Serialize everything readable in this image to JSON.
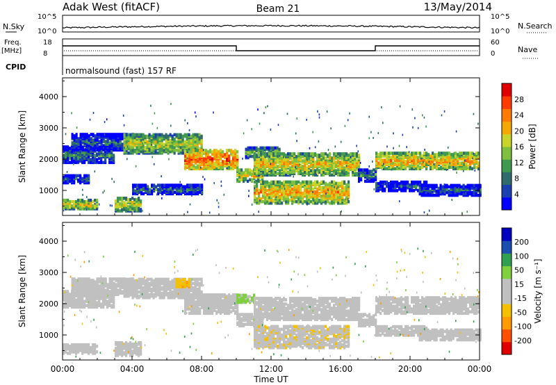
{
  "header": {
    "station": "Adak West (fitACF)",
    "beam": "Beam 21",
    "date": "13/May/2014"
  },
  "nsky_panel": {
    "left_label": "N.Sky",
    "right_label": "N.Search",
    "left_ticks": [
      "10^5",
      "10^0"
    ],
    "right_ticks": [
      "10^5",
      "10^0"
    ]
  },
  "freq_panel": {
    "left_label_1": "Freq.",
    "left_label_2": "[MHz]",
    "right_label": "Nave",
    "left_ticks": [
      "18",
      "8"
    ],
    "right_ticks": [
      "60",
      "0"
    ],
    "cpid_label": "CPID",
    "cpid_text": "normalsound (fast) 157 RF"
  },
  "chart_data": [
    {
      "type": "heatmap",
      "ylabel": "Slant Range [km]",
      "ylim": [
        200,
        4600
      ],
      "yticks": [
        "1000",
        "2000",
        "3000",
        "4000"
      ],
      "colorbar": {
        "label": "Power [dB]",
        "ticks": [
          "28",
          "24",
          "20",
          "16",
          "12",
          "8",
          "4"
        ],
        "range": [
          0,
          32
        ],
        "colors": [
          "#0000ff",
          "#1a3fb0",
          "#2f6b6b",
          "#3f9a4f",
          "#7fbf3f",
          "#c8d42a",
          "#f5a800",
          "#ff7a00",
          "#ff3c00",
          "#e00000"
        ]
      },
      "echo_bands": [
        {
          "t": [
            0,
            1.5
          ],
          "r": [
            1250,
            1500
          ],
          "power": 8
        },
        {
          "t": [
            0,
            3
          ],
          "r": [
            1900,
            2400
          ],
          "power": 10
        },
        {
          "t": [
            0.5,
            4
          ],
          "r": [
            2300,
            2800
          ],
          "power": 8
        },
        {
          "t": [
            0,
            2
          ],
          "r": [
            420,
            700
          ],
          "power": 20
        },
        {
          "t": [
            3,
            4.5
          ],
          "r": [
            350,
            800
          ],
          "power": 18
        },
        {
          "t": [
            4,
            8
          ],
          "r": [
            900,
            1200
          ],
          "power": 9
        },
        {
          "t": [
            3.5,
            8
          ],
          "r": [
            2200,
            2800
          ],
          "power": 18
        },
        {
          "t": [
            7,
            10
          ],
          "r": [
            1700,
            2300
          ],
          "power": 26
        },
        {
          "t": [
            10,
            11.5
          ],
          "r": [
            1300,
            1700
          ],
          "power": 20
        },
        {
          "t": [
            10.5,
            12.5
          ],
          "r": [
            2050,
            2400
          ],
          "power": 14
        },
        {
          "t": [
            11,
            17
          ],
          "r": [
            1500,
            2200
          ],
          "power": 20
        },
        {
          "t": [
            11,
            16.5
          ],
          "r": [
            600,
            1300
          ],
          "power": 22
        },
        {
          "t": [
            17,
            18
          ],
          "r": [
            1300,
            1700
          ],
          "power": 10
        },
        {
          "t": [
            18,
            24
          ],
          "r": [
            1700,
            2200
          ],
          "power": 22
        },
        {
          "t": [
            18,
            21
          ],
          "r": [
            1000,
            1300
          ],
          "power": 7
        },
        {
          "t": [
            20.5,
            24
          ],
          "r": [
            850,
            1200
          ],
          "power": 7
        }
      ]
    },
    {
      "type": "heatmap",
      "ylabel": "Slant Range [km]",
      "ylim": [
        200,
        4600
      ],
      "yticks": [
        "1000",
        "2000",
        "3000",
        "4000"
      ],
      "colorbar": {
        "label": "Velocity [m s⁻¹]",
        "ticks": [
          "200",
          "100",
          "50",
          "15",
          "-15",
          "-50",
          "-100",
          "-200"
        ],
        "range": [
          -250,
          250
        ],
        "colors": [
          "#e00000",
          "#ff5000",
          "#ff9a00",
          "#f5c000",
          "#c0c0c0",
          "#c0c0c0",
          "#7fcf3f",
          "#2fa04f",
          "#1a4fb0",
          "#0000c0"
        ]
      },
      "echo_bands": [
        {
          "t": [
            0,
            3
          ],
          "r": [
            1900,
            2400
          ],
          "vel": 0
        },
        {
          "t": [
            0.5,
            4
          ],
          "r": [
            2300,
            2800
          ],
          "vel": 0
        },
        {
          "t": [
            0,
            2
          ],
          "r": [
            420,
            700
          ],
          "vel": 0
        },
        {
          "t": [
            3,
            4.5
          ],
          "r": [
            350,
            800
          ],
          "vel": 0
        },
        {
          "t": [
            3.5,
            8
          ],
          "r": [
            2200,
            2800
          ],
          "vel": 0
        },
        {
          "t": [
            7,
            10
          ],
          "r": [
            1700,
            2300
          ],
          "vel": 0
        },
        {
          "t": [
            6.5,
            7.3
          ],
          "r": [
            2550,
            2800
          ],
          "vel": -90
        },
        {
          "t": [
            10,
            11.5
          ],
          "r": [
            1300,
            1700
          ],
          "vel": 0
        },
        {
          "t": [
            10,
            11
          ],
          "r": [
            2050,
            2300
          ],
          "vel": 60
        },
        {
          "t": [
            11,
            17
          ],
          "r": [
            1500,
            2200
          ],
          "vel": 0
        },
        {
          "t": [
            11,
            16.5
          ],
          "r": [
            600,
            1300
          ],
          "vel": -40
        },
        {
          "t": [
            17,
            18
          ],
          "r": [
            1300,
            1700
          ],
          "vel": 0
        },
        {
          "t": [
            18,
            24
          ],
          "r": [
            1700,
            2200
          ],
          "vel": 0
        },
        {
          "t": [
            18,
            21
          ],
          "r": [
            1000,
            1300
          ],
          "vel": 0
        },
        {
          "t": [
            20.5,
            24
          ],
          "r": [
            850,
            1200
          ],
          "vel": 0
        }
      ]
    }
  ],
  "xaxis": {
    "label": "Time UT",
    "ticks": [
      "00:00",
      "04:00",
      "08:00",
      "12:00",
      "16:00",
      "20:00",
      "00:00"
    ],
    "range_hours": [
      0,
      24
    ]
  },
  "frequency_steps": [
    {
      "t": [
        0,
        10
      ],
      "level": "high"
    },
    {
      "t": [
        10,
        18
      ],
      "level": "low"
    },
    {
      "t": [
        18,
        24
      ],
      "level": "high"
    }
  ]
}
